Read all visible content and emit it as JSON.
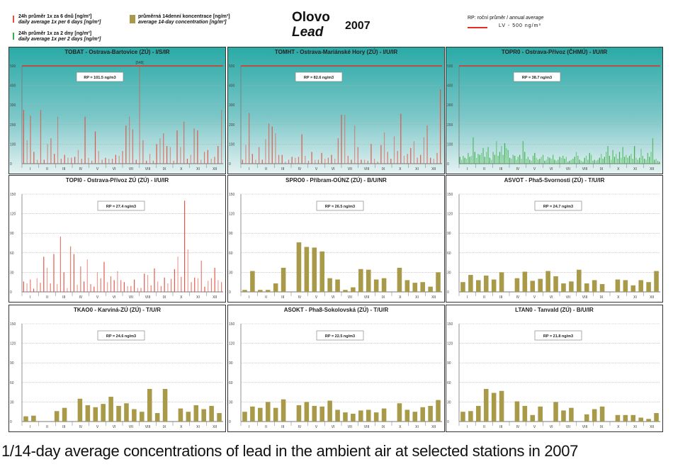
{
  "header": {
    "title_cz": "Olovo",
    "title_en": "Lead",
    "year": "2007",
    "legend": [
      {
        "cz": "24h průměr 1x za 6 dnů [ng/m³]",
        "en": "daily average 1x per 6 days [ng/m³]",
        "color": "#e05040"
      },
      {
        "cz": "24h průměr 1x za 2 dny [ng/m³]",
        "en": "daily average 1x per 2 days [ng/m³]",
        "color": "#3cb04a"
      },
      {
        "cz": "průměrná 14denní koncentrace [ng/m³]",
        "en": "average 14-day concentration [ng/m³]",
        "color": "#a89a48"
      }
    ],
    "rp_label_cz": "RP: roční průměr / ",
    "rp_label_en": "annual average",
    "lv_label": "LV    - 500 ng/m³",
    "lv_color": "#e03020"
  },
  "caption": "1/14-day average concentrations of lead in the ambient air at selected stations in 2007",
  "chart_data": [
    {
      "type": "bar",
      "style": "daily",
      "title": "TOBAT - Ostrava-Bartovice (ZÚ) - I/S/IR",
      "rp": "RP = 101.5 ng/m3",
      "ylim": [
        0,
        500
      ],
      "yticks": [
        0,
        100,
        200,
        300,
        400,
        500
      ],
      "lv": 500,
      "annotation": "[548]",
      "background": "teal",
      "bar_color": "#e05040",
      "months": [
        "I",
        "II",
        "III",
        "IV",
        "V",
        "VI",
        "VII",
        "VIII",
        "IX",
        "X",
        "XI",
        "XII"
      ],
      "values": [
        275,
        120,
        245,
        60,
        20,
        275,
        20,
        100,
        130,
        50,
        240,
        25,
        45,
        30,
        30,
        35,
        70,
        25,
        240,
        30,
        15,
        165,
        65,
        20,
        30,
        25,
        25,
        45,
        40,
        65,
        195,
        240,
        175,
        20,
        548,
        120,
        15,
        50,
        15,
        100,
        130,
        155,
        90,
        85,
        15,
        170,
        85,
        215,
        25,
        45,
        180,
        170,
        20,
        60,
        70,
        25,
        35,
        90,
        275
      ]
    },
    {
      "type": "bar",
      "style": "daily",
      "title": "TOMHT - Ostrava-Mariánské Hory (ZÚ) - I/U/IR",
      "rp": "RP = 82.6 ng/m3",
      "ylim": [
        0,
        500
      ],
      "yticks": [
        0,
        100,
        200,
        300,
        400,
        500
      ],
      "lv": 500,
      "background": "teal",
      "bar_color": "#e05040",
      "months": [
        "I",
        "II",
        "III",
        "IV",
        "V",
        "VI",
        "VII",
        "VIII",
        "IX",
        "X",
        "XI",
        "XII"
      ],
      "values": [
        20,
        95,
        260,
        50,
        20,
        85,
        20,
        125,
        205,
        190,
        155,
        45,
        45,
        10,
        20,
        35,
        30,
        35,
        150,
        40,
        15,
        60,
        20,
        20,
        55,
        25,
        30,
        45,
        25,
        130,
        250,
        250,
        40,
        20,
        195,
        85,
        20,
        20,
        15,
        100,
        25,
        10,
        95,
        160,
        60,
        25,
        140,
        65,
        255,
        40,
        50,
        80,
        115,
        30,
        45,
        135,
        195,
        30,
        25,
        55,
        380
      ]
    },
    {
      "type": "bar",
      "style": "daily-2day",
      "title": "TOPR0 - Ostrava-Přívoz (ČHMÚ) - I/U/IR",
      "rp": "RP = 38.7 ng/m3",
      "ylim": [
        0,
        500
      ],
      "yticks": [
        0,
        100,
        200,
        300,
        400,
        500
      ],
      "lv": 500,
      "background": "teal",
      "bar_color": "#3cb04a",
      "months": [
        "I",
        "II",
        "III",
        "IV",
        "V",
        "VI",
        "VII",
        "VIII",
        "IX",
        "X",
        "XI",
        "XII"
      ],
      "values": [
        35,
        20,
        40,
        30,
        25,
        55,
        35,
        40,
        135,
        60,
        30,
        50,
        45,
        55,
        80,
        35,
        60,
        85,
        30,
        20,
        60,
        45,
        115,
        40,
        60,
        90,
        45,
        105,
        80,
        70,
        30,
        25,
        45,
        40,
        20,
        35,
        45,
        25,
        115,
        60,
        25,
        35,
        20,
        15,
        40,
        55,
        30,
        20,
        25,
        35,
        45,
        15,
        20,
        35,
        30,
        25,
        45,
        20,
        15,
        20,
        35,
        30,
        40,
        25,
        35,
        10,
        15,
        20,
        25,
        35,
        60,
        40,
        20,
        15,
        10,
        30,
        40,
        20,
        55,
        45,
        15,
        20,
        15,
        20,
        30,
        50,
        25,
        35,
        60,
        90,
        40,
        20,
        70,
        35,
        50,
        25,
        60,
        30,
        85,
        35,
        45,
        30,
        40,
        50,
        25,
        90,
        30,
        20,
        30,
        75,
        40,
        25,
        20,
        55,
        35,
        60,
        130,
        20,
        25,
        15,
        10
      ]
    },
    {
      "type": "bar",
      "style": "daily",
      "title": "TOPI0 - Ostrava-Přívoz ZÚ (ZÚ) - I/U/IR",
      "rp": "RP = 27.4 ng/m3",
      "ylim": [
        0,
        150
      ],
      "yticks": [
        0,
        30,
        60,
        90,
        120,
        150
      ],
      "background": "white",
      "bar_color": "#e05040",
      "months": [
        "I",
        "II",
        "III",
        "IV",
        "V",
        "VI",
        "VII",
        "VIII",
        "IX",
        "X",
        "XI",
        "XII"
      ],
      "values": [
        16,
        13,
        19,
        5,
        21,
        14,
        54,
        37,
        13,
        58,
        12,
        85,
        30,
        6,
        70,
        58,
        11,
        39,
        16,
        50,
        12,
        8,
        30,
        21,
        46,
        15,
        24,
        18,
        32,
        18,
        15,
        9,
        9,
        19,
        6,
        6,
        28,
        26,
        10,
        36,
        16,
        9,
        22,
        13,
        20,
        35,
        54,
        23,
        140,
        65,
        15,
        22,
        21,
        48,
        8,
        17,
        21,
        37,
        18,
        15
      ]
    },
    {
      "type": "bar",
      "style": "14day",
      "title": "SPRO0 - Příbram-OÚNZ (ZÚ) - B/U/NR",
      "rp": "RP = 26.5 ng/m3",
      "ylim": [
        0,
        150
      ],
      "yticks": [
        0,
        30,
        60,
        90,
        120,
        150
      ],
      "background": "white",
      "bar_color": "#a89a48",
      "months": [
        "I",
        "II",
        "III",
        "IV",
        "V",
        "VI",
        "VII",
        "VIII",
        "IX",
        "X",
        "XI",
        "XII"
      ],
      "values": [
        3,
        32,
        3,
        3,
        13,
        37,
        null,
        76,
        69,
        68,
        62,
        21,
        19,
        3,
        7,
        35,
        34,
        19,
        21,
        null,
        37,
        18,
        14,
        15,
        8,
        30
      ]
    },
    {
      "type": "bar",
      "style": "14day",
      "title": "ASVOT - Pha5-Svornosti (ZÚ) - T/U/IR",
      "rp": "RP = 24.7 ng/m3",
      "ylim": [
        0,
        150
      ],
      "yticks": [
        0,
        30,
        60,
        90,
        120,
        150
      ],
      "background": "white",
      "bar_color": "#a89a48",
      "months": [
        "I",
        "II",
        "III",
        "IV",
        "V",
        "VI",
        "VII",
        "VIII",
        "IX",
        "X",
        "XI",
        "XII"
      ],
      "values": [
        15,
        26,
        18,
        25,
        19,
        30,
        null,
        21,
        31,
        17,
        20,
        32,
        24,
        13,
        16,
        34,
        13,
        18,
        12,
        null,
        19,
        18,
        10,
        18,
        15,
        32
      ]
    },
    {
      "type": "bar",
      "style": "14day",
      "title": "TKAO0 - Karviná-ZÚ (ZÚ) - T/U/R",
      "rp": "RP = 24.6 ng/m3",
      "ylim": [
        0,
        150
      ],
      "yticks": [
        0,
        30,
        60,
        90,
        120,
        150
      ],
      "background": "white",
      "bar_color": "#a89a48",
      "months": [
        "I",
        "II",
        "III",
        "IV",
        "V",
        "VI",
        "VII",
        "VIII",
        "IX",
        "X",
        "XI",
        "XII"
      ],
      "values": [
        8,
        9,
        null,
        null,
        16,
        21,
        null,
        35,
        25,
        22,
        27,
        38,
        24,
        28,
        19,
        15,
        50,
        13,
        50,
        null,
        20,
        15,
        25,
        19,
        24,
        13
      ]
    },
    {
      "type": "bar",
      "style": "14day",
      "title": "ASOKT - Pha8-Sokolovská (ZÚ) - T/U/R",
      "rp": "RP = 22.5 ng/m3",
      "ylim": [
        0,
        150
      ],
      "yticks": [
        0,
        30,
        60,
        90,
        120,
        150
      ],
      "background": "white",
      "bar_color": "#a89a48",
      "months": [
        "I",
        "II",
        "III",
        "IV",
        "V",
        "VI",
        "VII",
        "VIII",
        "IX",
        "X",
        "XI",
        "XII"
      ],
      "values": [
        15,
        23,
        21,
        30,
        21,
        34,
        null,
        25,
        30,
        24,
        23,
        32,
        18,
        14,
        12,
        17,
        18,
        14,
        20,
        null,
        28,
        18,
        15,
        22,
        24,
        33
      ]
    },
    {
      "type": "bar",
      "style": "14day",
      "title": "LTAN0 - Tanvald (ZÚ) - B/U/IR",
      "rp": "RP = 21.8 ng/m3",
      "ylim": [
        0,
        150
      ],
      "yticks": [
        0,
        30,
        60,
        90,
        120,
        150
      ],
      "background": "white",
      "bar_color": "#a89a48",
      "months": [
        "I",
        "II",
        "III",
        "IV",
        "V",
        "VI",
        "VII",
        "VIII",
        "IX",
        "X",
        "XI",
        "XII"
      ],
      "values": [
        15,
        16,
        24,
        50,
        44,
        47,
        null,
        31,
        24,
        10,
        23,
        null,
        30,
        17,
        21,
        null,
        11,
        19,
        23,
        null,
        10,
        10,
        10,
        6,
        4,
        13
      ]
    }
  ]
}
